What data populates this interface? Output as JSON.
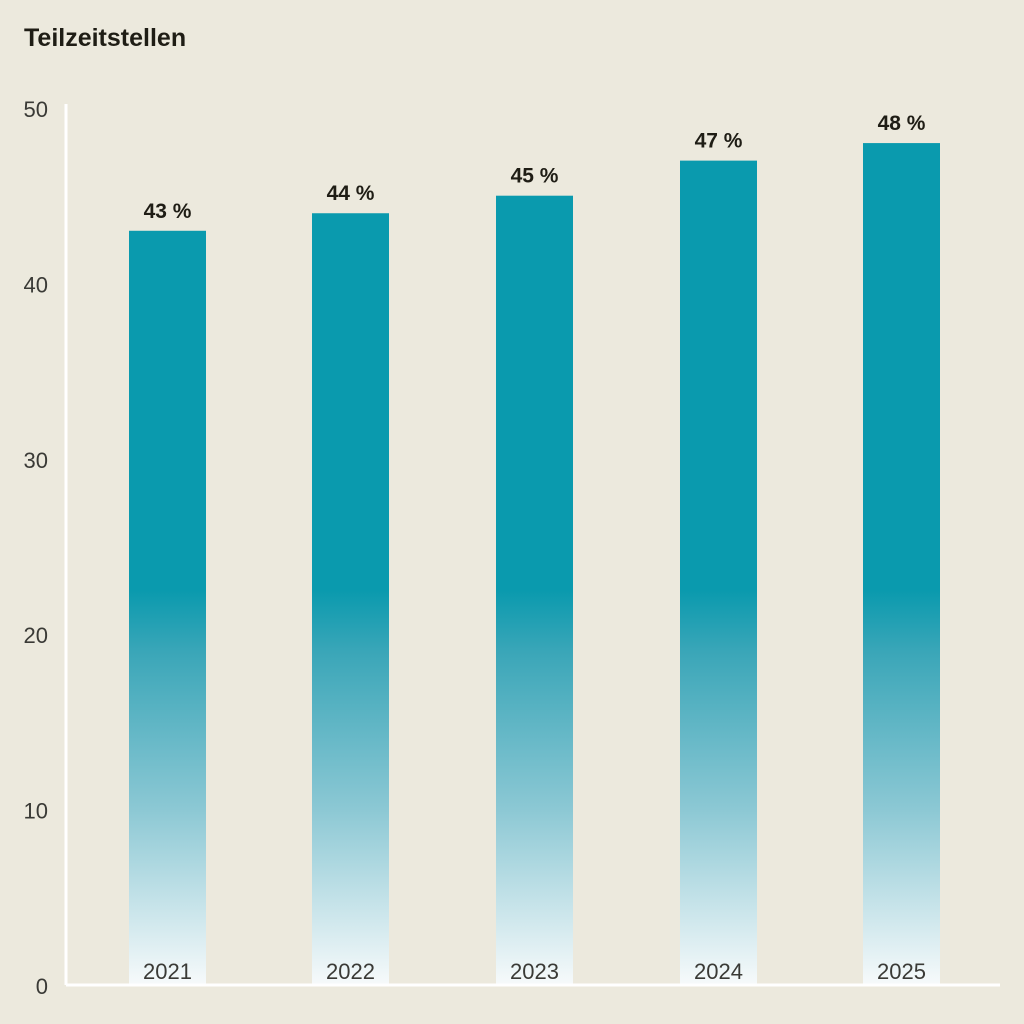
{
  "chart_data": {
    "type": "bar",
    "title": "Teilzeitstellen",
    "categories": [
      "2021",
      "2022",
      "2023",
      "2024",
      "2025"
    ],
    "values": [
      43,
      44,
      45,
      47,
      48
    ],
    "value_labels": [
      "43 %",
      "44 %",
      "45 %",
      "47 %",
      "48 %"
    ],
    "yticks": [
      0,
      10,
      20,
      30,
      40,
      50
    ],
    "ylim": [
      0,
      50
    ],
    "xlabel": "",
    "ylabel": "",
    "grid": false,
    "colors": {
      "bar": "#0a9aae",
      "bar_fade": "#ffffff",
      "axis": "#ffffff",
      "background": "#ece9dd"
    }
  }
}
